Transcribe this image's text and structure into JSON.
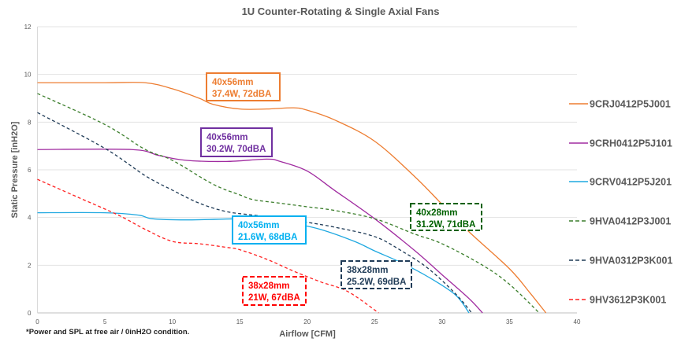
{
  "chart_data": {
    "type": "line",
    "title": "1U Counter-Rotating & Single Axial Fans",
    "xlabel": "Airflow [CFM]",
    "ylabel": "Static Pressure [inH2O]",
    "xlim": [
      0,
      40
    ],
    "ylim": [
      0,
      12
    ],
    "xticks": [
      0,
      5,
      10,
      15,
      20,
      25,
      30,
      35,
      40
    ],
    "yticks": [
      0,
      2,
      4,
      6,
      8,
      10,
      12
    ],
    "grid": "horizontal",
    "legend_position": "right",
    "footnote": "*Power and SPL at free air / 0inH2O condition.",
    "series": [
      {
        "name": "9CRJ0412P5J001",
        "color": "#ED7D31",
        "dash": false,
        "points": [
          [
            0,
            9.65
          ],
          [
            5,
            9.65
          ],
          [
            8,
            9.65
          ],
          [
            10,
            9.4
          ],
          [
            12,
            9.0
          ],
          [
            13,
            8.75
          ],
          [
            15,
            8.55
          ],
          [
            17,
            8.55
          ],
          [
            19,
            8.6
          ],
          [
            20,
            8.5
          ],
          [
            22,
            8.1
          ],
          [
            25,
            7.2
          ],
          [
            28,
            5.7
          ],
          [
            30,
            4.55
          ],
          [
            32,
            3.4
          ],
          [
            35,
            1.85
          ],
          [
            36.5,
            0.85
          ],
          [
            37.7,
            0
          ]
        ]
      },
      {
        "name": "9CRH0412P5J101",
        "color": "#A02BA0",
        "dash": false,
        "points": [
          [
            0,
            6.85
          ],
          [
            7,
            6.85
          ],
          [
            9,
            6.6
          ],
          [
            11,
            6.4
          ],
          [
            14,
            6.35
          ],
          [
            17,
            6.45
          ],
          [
            18,
            6.35
          ],
          [
            20,
            5.95
          ],
          [
            22,
            5.15
          ],
          [
            25,
            3.95
          ],
          [
            28,
            2.6
          ],
          [
            30,
            1.6
          ],
          [
            32,
            0.6
          ],
          [
            33,
            0
          ]
        ]
      },
      {
        "name": "9CRV0412P5J201",
        "color": "#1FA8E0",
        "dash": false,
        "points": [
          [
            0,
            4.2
          ],
          [
            5,
            4.2
          ],
          [
            7.5,
            4.1
          ],
          [
            8.5,
            3.95
          ],
          [
            11,
            3.9
          ],
          [
            15,
            3.95
          ],
          [
            17,
            3.95
          ],
          [
            19,
            3.75
          ],
          [
            21,
            3.5
          ],
          [
            23.5,
            3.0
          ],
          [
            25,
            2.6
          ],
          [
            27,
            2.1
          ],
          [
            29,
            1.5
          ],
          [
            31,
            0.75
          ],
          [
            32,
            0
          ]
        ]
      },
      {
        "name": "9HVA0412P3J001",
        "color": "#3A7D2A",
        "dash": true,
        "points": [
          [
            0,
            9.2
          ],
          [
            5,
            7.9
          ],
          [
            8,
            6.85
          ],
          [
            10,
            6.4
          ],
          [
            13,
            5.4
          ],
          [
            15,
            4.95
          ],
          [
            16,
            4.75
          ],
          [
            18,
            4.6
          ],
          [
            20,
            4.45
          ],
          [
            22,
            4.3
          ],
          [
            25,
            3.95
          ],
          [
            28,
            3.3
          ],
          [
            30,
            2.9
          ],
          [
            33,
            2.0
          ],
          [
            35,
            1.2
          ],
          [
            37.2,
            0
          ]
        ]
      },
      {
        "name": "9HVA0312P3K001",
        "color": "#1F3B57",
        "dash": true,
        "points": [
          [
            0,
            8.4
          ],
          [
            5,
            6.9
          ],
          [
            8,
            5.75
          ],
          [
            10,
            5.15
          ],
          [
            12,
            4.6
          ],
          [
            14,
            4.25
          ],
          [
            16,
            4.1
          ],
          [
            19,
            3.9
          ],
          [
            20,
            3.8
          ],
          [
            22,
            3.6
          ],
          [
            25,
            3.2
          ],
          [
            27,
            2.6
          ],
          [
            29,
            1.85
          ],
          [
            31,
            0.8
          ],
          [
            32.2,
            0
          ]
        ]
      },
      {
        "name": "9HV3612P3K001",
        "color": "#FF2020",
        "dash": true,
        "points": [
          [
            0,
            5.6
          ],
          [
            3,
            4.85
          ],
          [
            6,
            4.1
          ],
          [
            8,
            3.5
          ],
          [
            10,
            3.0
          ],
          [
            12,
            2.9
          ],
          [
            14,
            2.75
          ],
          [
            15,
            2.65
          ],
          [
            17,
            2.25
          ],
          [
            19,
            1.75
          ],
          [
            21,
            1.3
          ],
          [
            23,
            0.9
          ],
          [
            25.3,
            0
          ]
        ]
      }
    ],
    "annotations": [
      {
        "line1": "40x56mm",
        "line2": "37.4W, 72dBA",
        "color": "#ED7D31",
        "dashed": false
      },
      {
        "line1": "40x56mm",
        "line2": "30.2W, 70dBA",
        "color": "#7030A0",
        "dashed": false
      },
      {
        "line1": "40x56mm",
        "line2": "21.6W, 68dBA",
        "color": "#00B0F0",
        "dashed": false
      },
      {
        "line1": "38x28mm",
        "line2": "21W, 67dBA",
        "color": "#FF0000",
        "dashed": true
      },
      {
        "line1": "38x28mm",
        "line2": "25.2W, 69dBA",
        "color": "#1F3B57",
        "dashed": true
      },
      {
        "line1": "40x28mm",
        "line2": "31.2W, 71dBA",
        "color": "#006100",
        "dashed": true
      }
    ]
  }
}
